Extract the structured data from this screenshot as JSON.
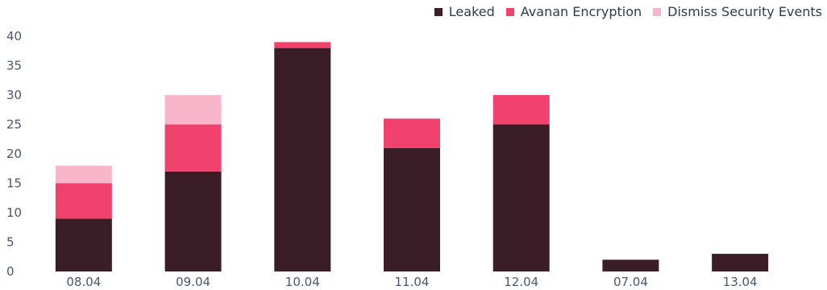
{
  "chart_data": {
    "type": "bar",
    "stacked": true,
    "categories": [
      "08.04",
      "09.04",
      "10.04",
      "11.04",
      "12.04",
      "07.04",
      "13.04"
    ],
    "series": [
      {
        "name": "Leaked",
        "color": "#3a1d26",
        "values": [
          9,
          17,
          38,
          21,
          25,
          2,
          3
        ]
      },
      {
        "name": "Avanan Encryption",
        "color": "#f0426d",
        "values": [
          6,
          8,
          1,
          5,
          5,
          0,
          0
        ]
      },
      {
        "name": "Dismiss Security Events",
        "color": "#f9b5c9",
        "values": [
          3,
          5,
          0,
          0,
          0,
          0,
          0
        ]
      }
    ],
    "y_ticks": [
      0,
      5,
      10,
      15,
      20,
      25,
      30,
      35,
      40
    ],
    "ylim": [
      0,
      40
    ],
    "grid": false,
    "legend_position": "top-right"
  }
}
